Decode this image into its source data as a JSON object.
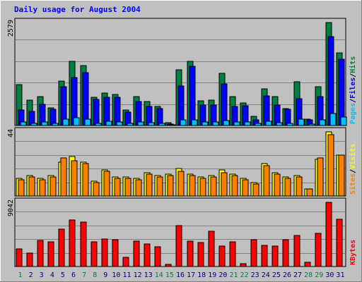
{
  "chart_data": {
    "type": "bar",
    "title": "Daily usage for August 2004",
    "categories": [
      "1",
      "2",
      "3",
      "4",
      "5",
      "6",
      "7",
      "8",
      "9",
      "10",
      "11",
      "12",
      "13",
      "14",
      "15",
      "16",
      "17",
      "18",
      "19",
      "20",
      "21",
      "22",
      "23",
      "24",
      "25",
      "26",
      "27",
      "28",
      "29",
      "30",
      "31"
    ],
    "weekend_days": [
      "1",
      "7",
      "8",
      "14",
      "15",
      "21",
      "22",
      "28",
      "29"
    ],
    "panels": [
      {
        "id": "hits",
        "max_label": "2579",
        "ymax": 2579,
        "side_labels": [
          "Pages",
          "Files",
          "Hits"
        ],
        "series": [
          {
            "name": "Hits",
            "color": "#008040",
            "values": [
              1030,
              640,
              720,
              450,
              1120,
              1600,
              1510,
              710,
              810,
              770,
              380,
              720,
              600,
              470,
              70,
              1390,
              1600,
              610,
              630,
              1300,
              720,
              560,
              230,
              920,
              720,
              430,
              1090,
              160,
              970,
              2579,
              1820
            ]
          },
          {
            "name": "Files",
            "color": "#0000ff",
            "values": [
              390,
              350,
              530,
              400,
              970,
              1200,
              1330,
              650,
              700,
              700,
              330,
              600,
              470,
              430,
              30,
              990,
              1480,
              510,
              520,
              1040,
              470,
              490,
              150,
              750,
              520,
              400,
              670,
              140,
              730,
              2230,
              1660
            ]
          },
          {
            "name": "Pages",
            "color": "#00c0ff",
            "values": [
              80,
              60,
              90,
              50,
              160,
              200,
              160,
              60,
              110,
              90,
              50,
              90,
              70,
              50,
              10,
              140,
              150,
              80,
              80,
              120,
              90,
              80,
              50,
              100,
              70,
              60,
              160,
              40,
              150,
              300,
              220
            ]
          }
        ]
      },
      {
        "id": "visits",
        "max_label": "44",
        "ymax": 44,
        "side_labels": [
          "Sites",
          "Visits"
        ],
        "series": [
          {
            "name": "Visits",
            "color": "#ffff00",
            "values": [
              12,
              14,
              12,
              14,
              23,
              27,
              23,
              10,
              18,
              13,
              13,
              12,
              16,
              14,
              15,
              19,
              15,
              13,
              14,
              18,
              15,
              12,
              9,
              22,
              16,
              13,
              14,
              5,
              25,
              44,
              28
            ]
          },
          {
            "name": "Sites",
            "color": "#ff8000",
            "values": [
              11,
              13,
              11,
              13,
              26,
              24,
              22,
              9,
              17,
              12,
              12,
              11,
              15,
              13,
              14,
              17,
              14,
              12,
              13,
              16,
              14,
              11,
              8,
              21,
              15,
              12,
              13,
              5,
              26,
              42,
              28
            ]
          }
        ]
      },
      {
        "id": "kbytes",
        "max_label": "9042",
        "ymax": 9042,
        "side_labels": [
          "KBytes"
        ],
        "series": [
          {
            "name": "KBytes",
            "color": "#ff0000",
            "values": [
              2450,
              1870,
              3660,
              3440,
              5300,
              6530,
              6290,
              3440,
              3910,
              3770,
              1310,
              3580,
              3190,
              2780,
              260,
              5740,
              3530,
              3350,
              4950,
              2890,
              3460,
              360,
              3820,
              2990,
              2930,
              3820,
              4420,
              590,
              4640,
              9042,
              6650
            ]
          }
        ]
      }
    ]
  }
}
